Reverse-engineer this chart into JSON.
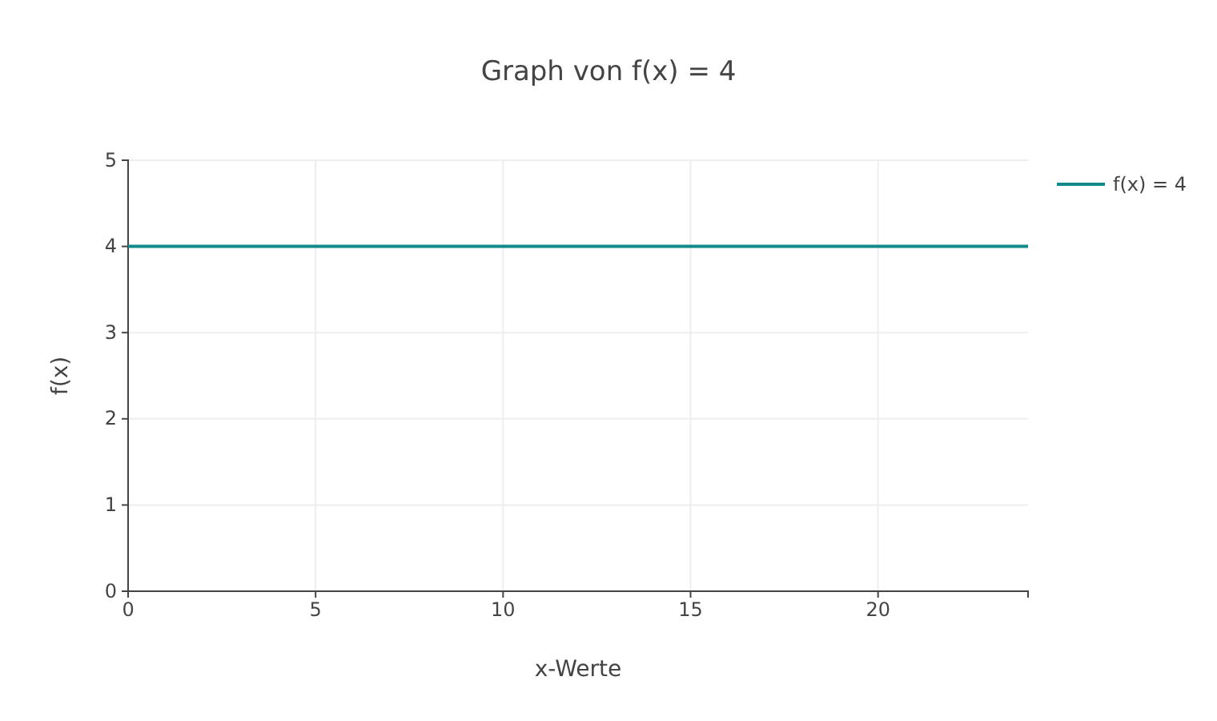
{
  "chart_data": {
    "type": "line",
    "title": "Graph von f(x) = 4",
    "xlabel": "x-Werte",
    "ylabel": "f(x)",
    "x": [
      0,
      24
    ],
    "series": [
      {
        "name": "f(x) = 4",
        "color": "#138a8a",
        "values": [
          4,
          4
        ]
      }
    ],
    "xlim": [
      0,
      24
    ],
    "xticks": [
      0,
      5,
      10,
      15,
      20
    ],
    "ylim": [
      0,
      5
    ],
    "yticks": [
      0,
      1,
      2,
      3,
      4,
      5
    ],
    "grid": true,
    "legend": "top right",
    "marker": "none",
    "line_style": "solid"
  }
}
